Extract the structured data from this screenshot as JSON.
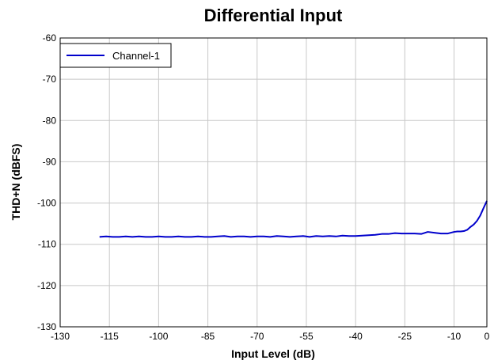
{
  "chart_data": {
    "type": "line",
    "title": "Differential Input",
    "xlabel": "Input Level (dB)",
    "ylabel": "THD+N (dBFS)",
    "xlim": [
      -130,
      0
    ],
    "ylim": [
      -130,
      -60
    ],
    "xticks": [
      "-130",
      "-115",
      "-100",
      "-85",
      "-70",
      "-55",
      "-40",
      "-25",
      "-10",
      "0"
    ],
    "xtick_values": [
      -130,
      -115,
      -100,
      -85,
      -70,
      -55,
      -40,
      -25,
      -10,
      0
    ],
    "yticks": [
      "-60",
      "-70",
      "-80",
      "-90",
      "-100",
      "-110",
      "-120",
      "-130"
    ],
    "ytick_values": [
      -60,
      -70,
      -80,
      -90,
      -100,
      -110,
      -120,
      -130
    ],
    "xgrid_values": [
      -130,
      -115,
      -100,
      -85,
      -70,
      -55,
      -40,
      -25,
      -10,
      0
    ],
    "ygrid_values": [
      -60,
      -70,
      -80,
      -90,
      -100,
      -110,
      -120,
      -130
    ],
    "grid": true,
    "legend_position": "top-left",
    "series": [
      {
        "name": "Channel-1",
        "color": "#0000cc",
        "x": [
          -118,
          -116,
          -114,
          -112,
          -110,
          -108,
          -106,
          -104,
          -102,
          -100,
          -98,
          -96,
          -94,
          -92,
          -90,
          -88,
          -86,
          -84,
          -82,
          -80,
          -78,
          -76,
          -74,
          -72,
          -70,
          -68,
          -66,
          -64,
          -62,
          -60,
          -58,
          -56,
          -54,
          -52,
          -50,
          -48,
          -46,
          -44,
          -42,
          -40,
          -38,
          -36,
          -34,
          -32,
          -30,
          -28,
          -26,
          -24,
          -22,
          -20,
          -18,
          -16,
          -14,
          -12,
          -10,
          -9,
          -8,
          -7,
          -6,
          -5,
          -4,
          -3,
          -2,
          -1,
          0
        ],
        "y": [
          -108.2,
          -108.1,
          -108.2,
          -108.2,
          -108.1,
          -108.2,
          -108.1,
          -108.2,
          -108.2,
          -108.1,
          -108.2,
          -108.2,
          -108.1,
          -108.2,
          -108.2,
          -108.1,
          -108.2,
          -108.2,
          -108.1,
          -108.0,
          -108.2,
          -108.1,
          -108.1,
          -108.2,
          -108.1,
          -108.1,
          -108.2,
          -108.0,
          -108.1,
          -108.2,
          -108.1,
          -108.0,
          -108.2,
          -108.0,
          -108.1,
          -108.0,
          -108.1,
          -107.9,
          -108.0,
          -108.0,
          -107.9,
          -107.8,
          -107.7,
          -107.5,
          -107.5,
          -107.3,
          -107.4,
          -107.4,
          -107.4,
          -107.5,
          -107.0,
          -107.2,
          -107.4,
          -107.4,
          -107.0,
          -106.9,
          -106.9,
          -106.8,
          -106.5,
          -105.8,
          -105.2,
          -104.3,
          -103.0,
          -101.2,
          -99.5
        ]
      }
    ]
  }
}
